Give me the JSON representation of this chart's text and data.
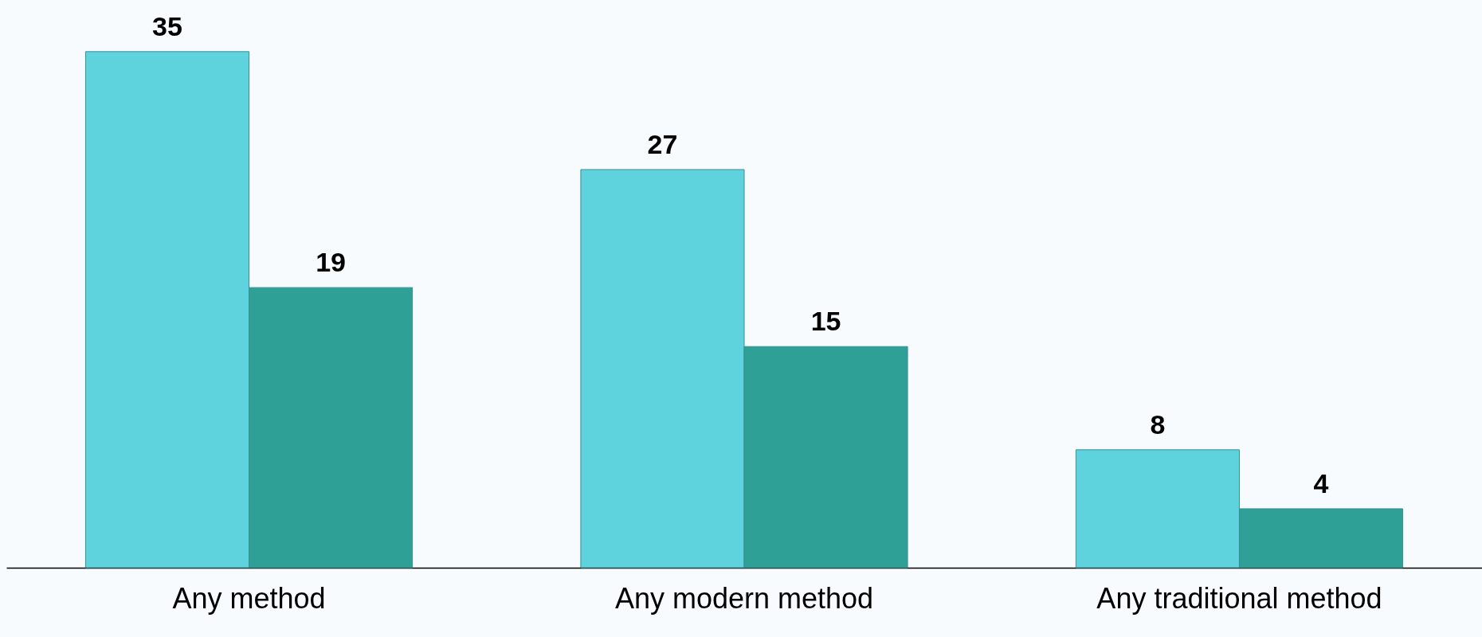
{
  "chart_data": {
    "type": "bar",
    "categories": [
      "Any method",
      "Any modern method",
      "Any traditional method"
    ],
    "series": [
      {
        "color": "#5fd3dd",
        "values": [
          35,
          27,
          8
        ]
      },
      {
        "color": "#2ea096",
        "values": [
          19,
          15,
          4
        ]
      }
    ],
    "data_labels": true,
    "grid": false,
    "legend": false
  }
}
